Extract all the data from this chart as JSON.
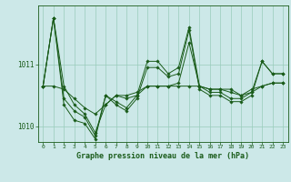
{
  "background_color": "#cce8e8",
  "plot_bg_color": "#cce8e8",
  "grid_color": "#99ccbb",
  "line_color": "#1a5c1a",
  "marker_color": "#1a5c1a",
  "xlabel": "Graphe pression niveau de la mer (hPa)",
  "xlim": [
    -0.5,
    23.5
  ],
  "ylim": [
    1009.75,
    1011.95
  ],
  "yticks": [
    1010,
    1011
  ],
  "xticks": [
    0,
    1,
    2,
    3,
    4,
    5,
    6,
    7,
    8,
    9,
    10,
    11,
    12,
    13,
    14,
    15,
    16,
    17,
    18,
    19,
    20,
    21,
    22,
    23
  ],
  "series": [
    [
      1010.65,
      1011.75,
      1010.65,
      1010.35,
      1010.2,
      1009.9,
      1010.35,
      1010.5,
      1010.45,
      1010.5,
      1010.65,
      1010.65,
      1010.65,
      1010.7,
      1011.35,
      1010.65,
      1010.6,
      1010.6,
      1010.55,
      1010.5,
      1010.6,
      1010.65,
      1010.7,
      1010.7
    ],
    [
      1010.65,
      1010.65,
      1010.6,
      1010.45,
      1010.3,
      1010.2,
      1010.35,
      1010.5,
      1010.5,
      1010.55,
      1010.65,
      1010.65,
      1010.65,
      1010.65,
      1010.65,
      1010.65,
      1010.6,
      1010.6,
      1010.6,
      1010.5,
      1010.55,
      1010.65,
      1010.7,
      1010.7
    ],
    [
      1010.65,
      1011.75,
      1010.45,
      1010.25,
      1010.15,
      1009.85,
      1010.5,
      1010.4,
      1010.3,
      1010.5,
      1011.05,
      1011.05,
      1010.85,
      1010.95,
      1011.6,
      1010.65,
      1010.55,
      1010.55,
      1010.45,
      1010.45,
      1010.55,
      1011.05,
      1010.85,
      1010.85
    ],
    [
      1010.65,
      1011.75,
      1010.35,
      1010.1,
      1010.05,
      1009.8,
      1010.5,
      1010.35,
      1010.25,
      1010.45,
      1010.95,
      1010.95,
      1010.8,
      1010.85,
      1011.55,
      1010.6,
      1010.5,
      1010.5,
      1010.4,
      1010.4,
      1010.5,
      1011.05,
      1010.85,
      1010.85
    ]
  ]
}
